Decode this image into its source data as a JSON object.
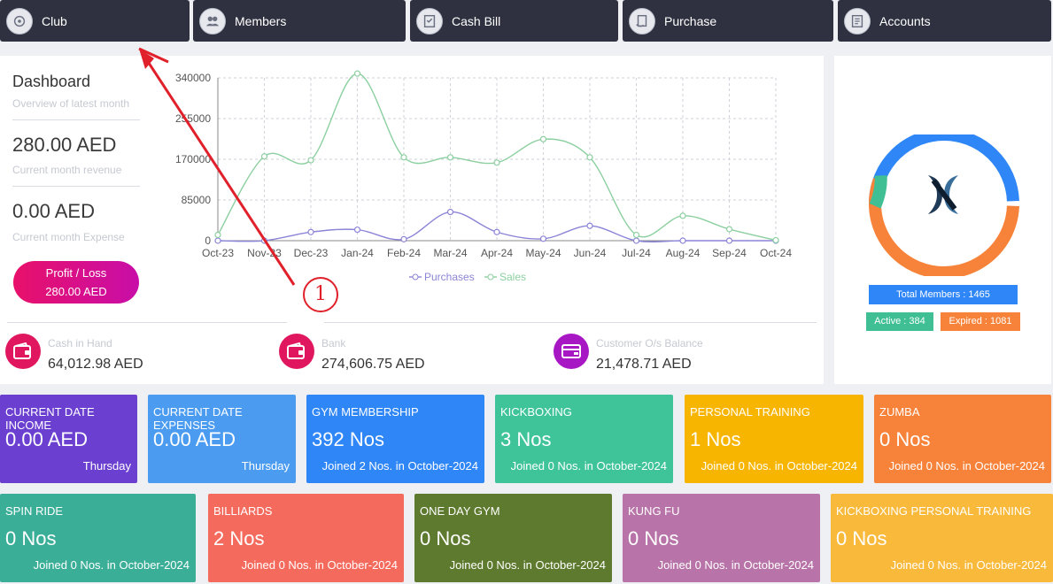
{
  "nav": [
    {
      "label": "Club",
      "icon": "club-icon"
    },
    {
      "label": "Members",
      "icon": "members-icon"
    },
    {
      "label": "Cash Bill",
      "icon": "cash-bill-icon"
    },
    {
      "label": "Purchase",
      "icon": "purchase-icon"
    },
    {
      "label": "Accounts",
      "icon": "accounts-icon"
    }
  ],
  "dashboard": {
    "title": "Dashboard",
    "subtitle": "Overview of latest month",
    "revenue_value": "280.00 AED",
    "revenue_label": "Current month revenue",
    "expense_value": "0.00 AED",
    "expense_label": "Current month Expense",
    "profit_label": "Profit / Loss",
    "profit_value": "280.00 AED"
  },
  "stats": {
    "cash_label": "Cash in Hand",
    "cash_value": "64,012.98 AED",
    "bank_label": "Bank",
    "bank_value": "274,606.75 AED",
    "customer_label": "Customer O/s Balance",
    "customer_value": "21,478.71 AED"
  },
  "chart_data": {
    "type": "line",
    "x": [
      "Oct-23",
      "Nov-23",
      "Dec-23",
      "Jan-24",
      "Feb-24",
      "Mar-24",
      "Apr-24",
      "May-24",
      "Jun-24",
      "Jul-24",
      "Aug-24",
      "Sep-24",
      "Oct-24"
    ],
    "yticks": [
      "0",
      "85000",
      "170000",
      "255000",
      "340000"
    ],
    "ylim": [
      0,
      340000
    ],
    "grid": true,
    "legend_position": "bottom",
    "series": [
      {
        "name": "Purchases",
        "color": "#8b84d7",
        "values": [
          0,
          0,
          18000,
          23000,
          3000,
          60000,
          18000,
          4000,
          31000,
          0,
          0,
          0,
          0
        ]
      },
      {
        "name": "Sales",
        "color": "#8ccfa0",
        "values": [
          12000,
          176000,
          168000,
          349000,
          174000,
          174000,
          163000,
          212000,
          174000,
          12000,
          52000,
          24000,
          1000
        ]
      }
    ]
  },
  "members": {
    "total_label": "Total Members : 1465",
    "active_label": "Active : 384",
    "expired_label": "Expired : 1081",
    "active": 384,
    "expired": 1081,
    "total": 1465,
    "colors": {
      "active": "#3fbf93",
      "expired": "#f7833a",
      "total": "#2f86f6"
    }
  },
  "cards_row1": [
    {
      "title": "CURRENT DATE INCOME",
      "value": "0.00 AED",
      "foot": "Thursday",
      "color": "#6b3fd0"
    },
    {
      "title": "CURRENT DATE EXPENSES",
      "value": "0.00 AED",
      "foot": "Thursday",
      "color": "#4b9cf0"
    },
    {
      "title": "GYM MEMBERSHIP",
      "value": "392 Nos",
      "foot": "Joined 2 Nos. in October-2024",
      "color": "#2f86f6"
    },
    {
      "title": "KICKBOXING",
      "value": "3 Nos",
      "foot": "Joined 0 Nos. in October-2024",
      "color": "#3fc49a"
    },
    {
      "title": "PERSONAL TRAINING",
      "value": "1 Nos",
      "foot": "Joined 0 Nos. in October-2024",
      "color": "#f7b500"
    },
    {
      "title": "ZUMBA",
      "value": "0 Nos",
      "foot": "Joined 0 Nos. in October-2024",
      "color": "#f7833a"
    }
  ],
  "cards_row2": [
    {
      "title": "SPIN RIDE",
      "value": "0 Nos",
      "foot": "Joined 0 Nos. in October-2024",
      "color": "#3bae98"
    },
    {
      "title": "BILLIARDS",
      "value": "2 Nos",
      "foot": "Joined 0 Nos. in October-2024",
      "color": "#f46b5e"
    },
    {
      "title": "ONE DAY GYM",
      "value": "0 Nos",
      "foot": "Joined 0 Nos. in October-2024",
      "color": "#5e7a2e"
    },
    {
      "title": "KUNG FU",
      "value": "0 Nos",
      "foot": "Joined 0 Nos. in October-2024",
      "color": "#b874a8"
    },
    {
      "title": "KICKBOXING PERSONAL TRAINING",
      "value": "0 Nos",
      "foot": "Joined 0 Nos. in October-2024",
      "color": "#f9b93a"
    }
  ],
  "annotation": {
    "label": "1"
  }
}
